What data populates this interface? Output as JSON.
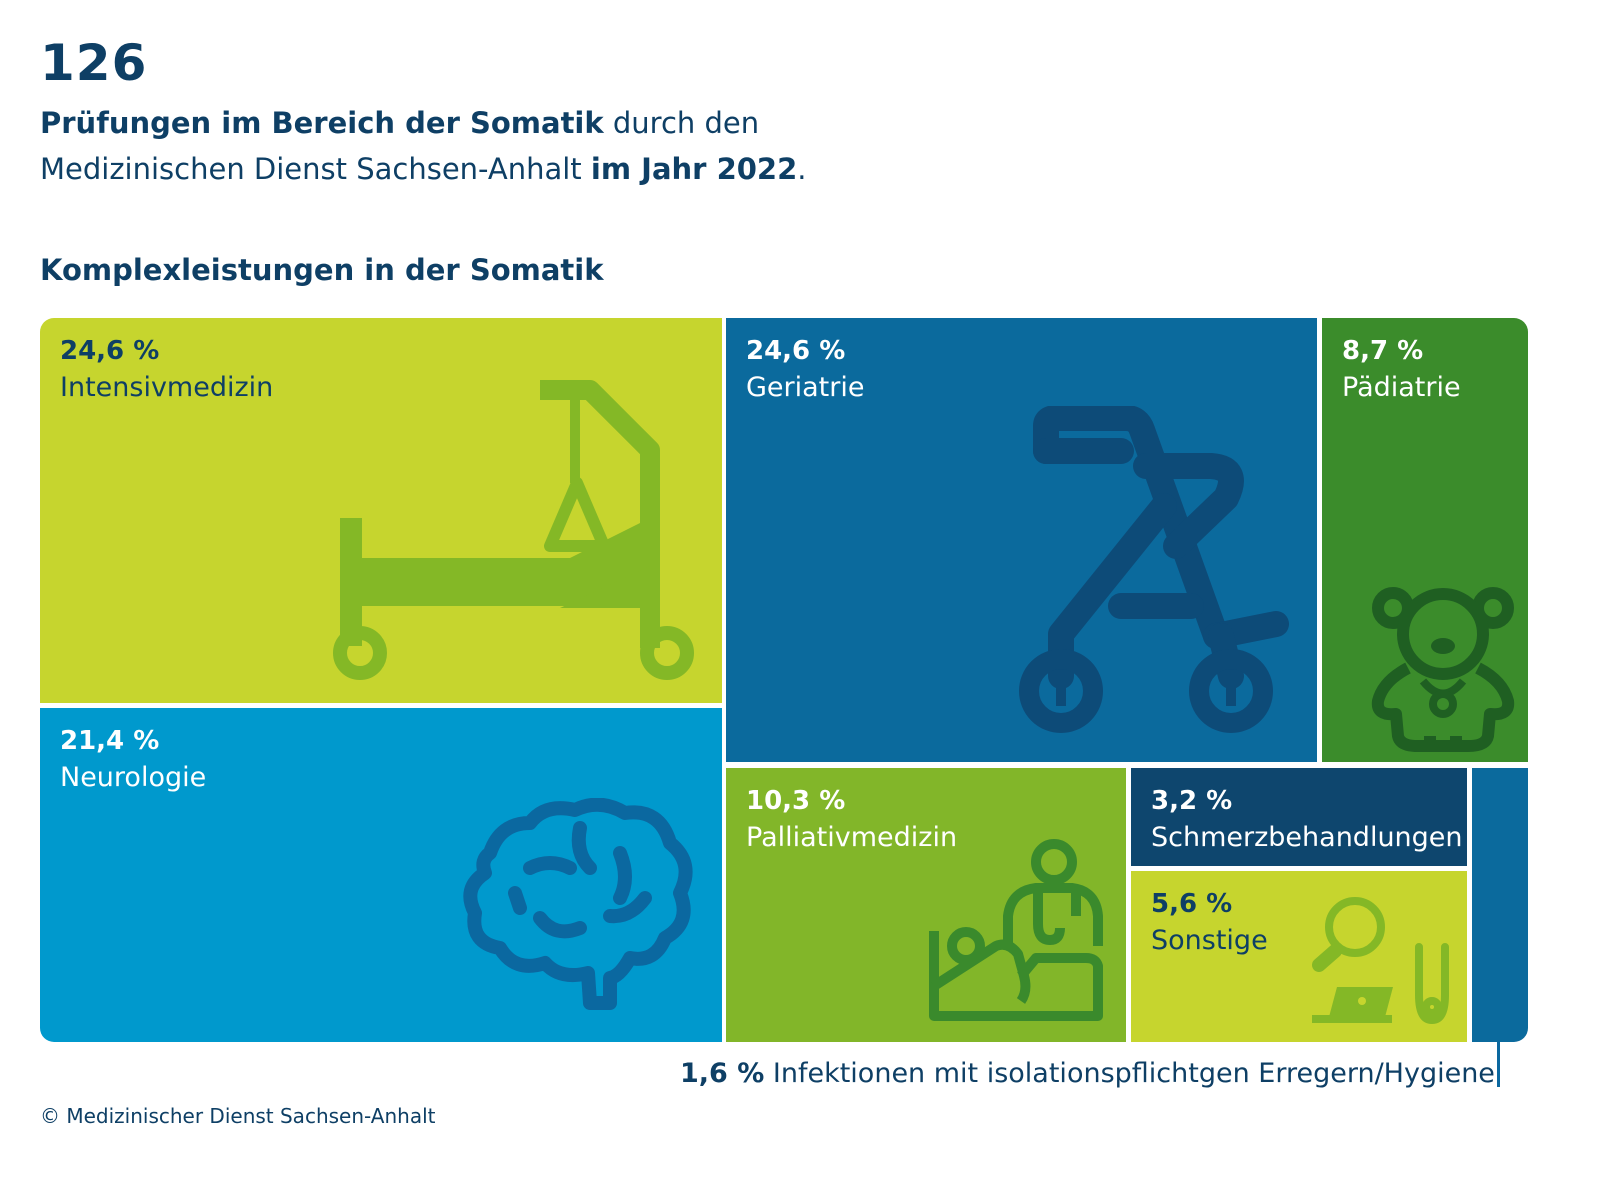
{
  "header": {
    "number": "126",
    "line1_bold": "Prüfungen im Bereich der Somatik",
    "line1_rest": " durch den",
    "line2_start": "Medizinischen Dienst Sachsen-Anhalt ",
    "line2_bold": "im Jahr 2022",
    "line2_end": "."
  },
  "section_title": "Komplexleistungen in der Somatik",
  "colors": {
    "intensiv": "#c6d52e",
    "geriatrie": "#0b6a9d",
    "paediatrie": "#3b8c2b",
    "neurologie": "#0099cd",
    "palliativ": "#82b629",
    "schmerz": "#0e466e",
    "sonstige": "#c6d52e",
    "infektionen": "#0b6a9d",
    "dark_text": "#0e3f65",
    "white_text": "#ffffff"
  },
  "chart_data": {
    "type": "treemap",
    "title": "Komplexleistungen in der Somatik",
    "unit": "%",
    "categories": [
      "Intensivmedizin",
      "Geriatrie",
      "Pädiatrie",
      "Neurologie",
      "Palliativmedizin",
      "Schmerzbehandlungen",
      "Sonstige",
      "Infektionen mit isolationspflichtgen Erregern/Hygiene"
    ],
    "values": [
      24.6,
      24.6,
      8.7,
      21.4,
      10.3,
      3.2,
      5.6,
      1.6
    ],
    "items": [
      {
        "id": "intensiv",
        "pct": "24,6 %",
        "label": "Intensivmedizin",
        "value": 24.6,
        "icon": "hospital-bed-icon"
      },
      {
        "id": "geriatrie",
        "pct": "24,6 %",
        "label": "Geriatrie",
        "value": 24.6,
        "icon": "rollator-icon"
      },
      {
        "id": "paediatrie",
        "pct": "8,7 %",
        "label": "Pädiatrie",
        "value": 8.7,
        "icon": "teddy-bear-icon"
      },
      {
        "id": "neurologie",
        "pct": "21,4 %",
        "label": "Neurologie",
        "value": 21.4,
        "icon": "brain-icon"
      },
      {
        "id": "palliativ",
        "pct": "10,3 %",
        "label": "Palliativmedizin",
        "value": 10.3,
        "icon": "doctor-patient-icon"
      },
      {
        "id": "schmerz",
        "pct": "3,2 %",
        "label": "Schmerzbehandlungen",
        "value": 3.2
      },
      {
        "id": "sonstige",
        "pct": "5,6 %",
        "label": "Sonstige",
        "value": 5.6,
        "icon": "magnifier-laptop-stethoscope-icon"
      },
      {
        "id": "infektionen",
        "pct": "1,6 %",
        "label": "Infektionen mit isolationspflichtgen Erregern/Hygiene",
        "value": 1.6
      }
    ]
  },
  "copyright": "© Medizinischer Dienst Sachsen-Anhalt"
}
